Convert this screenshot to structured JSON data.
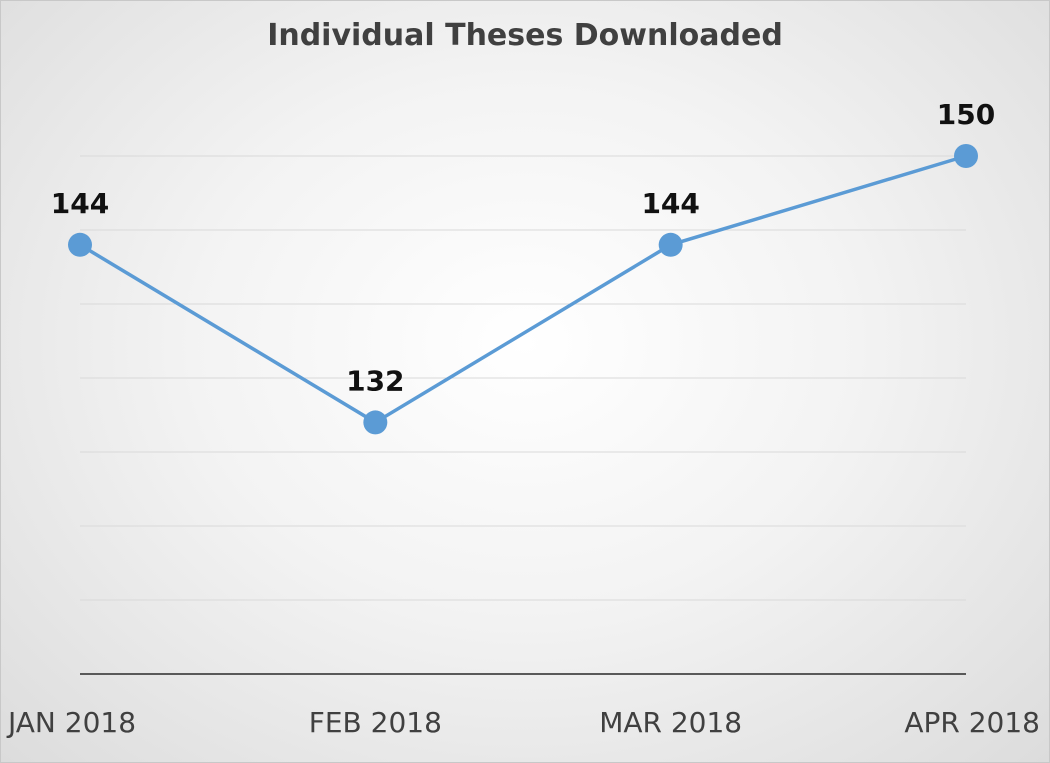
{
  "chart_data": {
    "type": "line",
    "title": "Individual Theses Downloaded",
    "categories": [
      "JAN 2018",
      "FEB 2018",
      "MAR 2018",
      "APR 2018"
    ],
    "series": [
      {
        "values": [
          144,
          132,
          144,
          150
        ]
      }
    ],
    "data_labels": [
      "144",
      "132",
      "144",
      "150"
    ],
    "ylim": [
      115,
      155
    ],
    "gridlines": true,
    "colors": {
      "line": "#5B9BD5",
      "grid": "#d9d9d9",
      "axis": "#595959"
    }
  }
}
